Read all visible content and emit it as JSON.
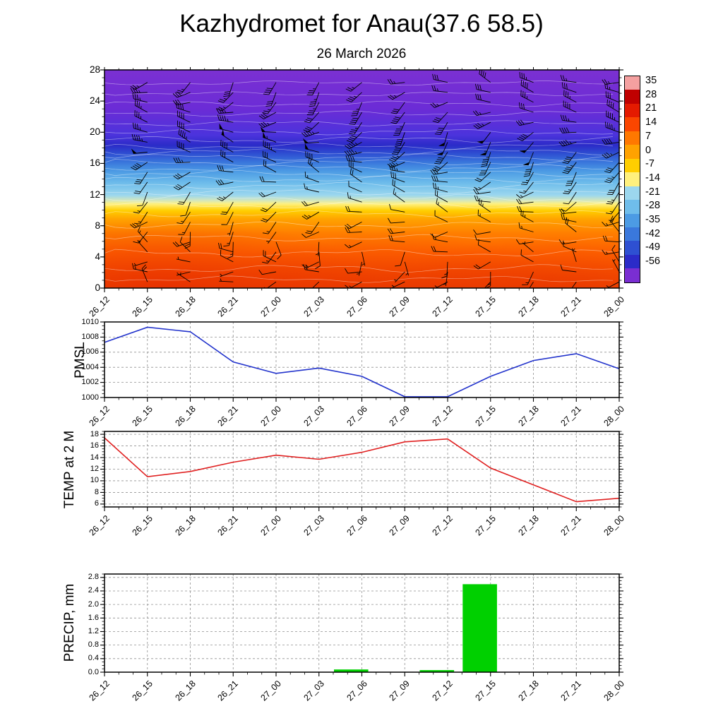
{
  "header": {
    "title": "Kazhydromet for Anau(37.6 58.5)",
    "subtitle": "26 March 2026"
  },
  "time_labels": [
    "26_12",
    "26_15",
    "26_18",
    "26_21",
    "27_00",
    "27_03",
    "27_06",
    "27_09",
    "27_12",
    "27_15",
    "27_18",
    "27_21",
    "28_00"
  ],
  "colorbar": {
    "labels": [
      "35",
      "28",
      "21",
      "14",
      "7",
      "0",
      "-7",
      "-14",
      "-21",
      "-28",
      "-35",
      "-42",
      "-49",
      "-56"
    ],
    "colors": [
      "#F4A0A0",
      "#C00000",
      "#E41A00",
      "#FA4600",
      "#FF7800",
      "#FFA200",
      "#FFCE00",
      "#FFF07D",
      "#9CD7EE",
      "#6FBDEB",
      "#4C9BE4",
      "#3A78DC",
      "#2E50D2",
      "#2B2BC8",
      "#7A2ED2"
    ]
  },
  "chart_data": [
    {
      "id": "cross_section",
      "type": "heatmap",
      "title": "Upper-air temperature / wind cross-section",
      "ylabel": "",
      "ylim": [
        0,
        28
      ],
      "yticks": [
        "0",
        "4",
        "8",
        "12",
        "16",
        "20",
        "24",
        "28"
      ],
      "x_ref": "time_labels",
      "legend_position": "right-colorbar",
      "gradient": [
        [
          0.0,
          "#7B30D2"
        ],
        [
          0.18,
          "#6B2CD6"
        ],
        [
          0.3,
          "#4B33DC"
        ],
        [
          0.345,
          "#2B2BC8"
        ],
        [
          0.385,
          "#2E50D2"
        ],
        [
          0.425,
          "#3A78DC"
        ],
        [
          0.465,
          "#4C9BE4"
        ],
        [
          0.52,
          "#6FBDEB"
        ],
        [
          0.575,
          "#9CD7EE"
        ],
        [
          0.6,
          "#D8E8B8"
        ],
        [
          0.615,
          "#FFF07D"
        ],
        [
          0.645,
          "#FFCE00"
        ],
        [
          0.685,
          "#FFA200"
        ],
        [
          0.75,
          "#FF7E00"
        ],
        [
          0.84,
          "#FF6400"
        ],
        [
          0.94,
          "#F55000"
        ],
        [
          1.0,
          "#EE4800"
        ]
      ]
    },
    {
      "id": "pmsl",
      "type": "line",
      "ylabel": "PMSL",
      "line_color": "#2233CC",
      "ylim": [
        1000,
        1010
      ],
      "yticks": [
        "1000",
        "1002",
        "1004",
        "1006",
        "1008",
        "1010"
      ],
      "x_ref": "time_labels",
      "values": [
        1007.3,
        1009.3,
        1008.7,
        1004.7,
        1003.2,
        1003.9,
        1002.8,
        1000.1,
        1000.1,
        1002.8,
        1004.9,
        1005.8,
        1003.8
      ]
    },
    {
      "id": "temp",
      "type": "line",
      "ylabel": "TEMP at 2 M",
      "line_color": "#E02020",
      "ylim": [
        5.5,
        18.5
      ],
      "yticks": [
        "6",
        "8",
        "10",
        "12",
        "14",
        "16",
        "18"
      ],
      "x_ref": "time_labels",
      "values": [
        17.4,
        10.7,
        11.6,
        13.2,
        14.4,
        13.7,
        14.9,
        16.7,
        17.2,
        12.2,
        9.3,
        6.4,
        7.0
      ]
    },
    {
      "id": "precip",
      "type": "bar",
      "ylabel": "PRECIP, mm",
      "bar_color": "#00D000",
      "ylim": [
        0,
        2.9
      ],
      "yticks": [
        "0.0",
        "0.4",
        "0.8",
        "1.2",
        "1.6",
        "2.0",
        "2.4",
        "2.8"
      ],
      "x_ref": "time_labels",
      "values": [
        0,
        0,
        0,
        0,
        0,
        0,
        0.08,
        0,
        0.06,
        2.6,
        0,
        0,
        0
      ]
    }
  ]
}
